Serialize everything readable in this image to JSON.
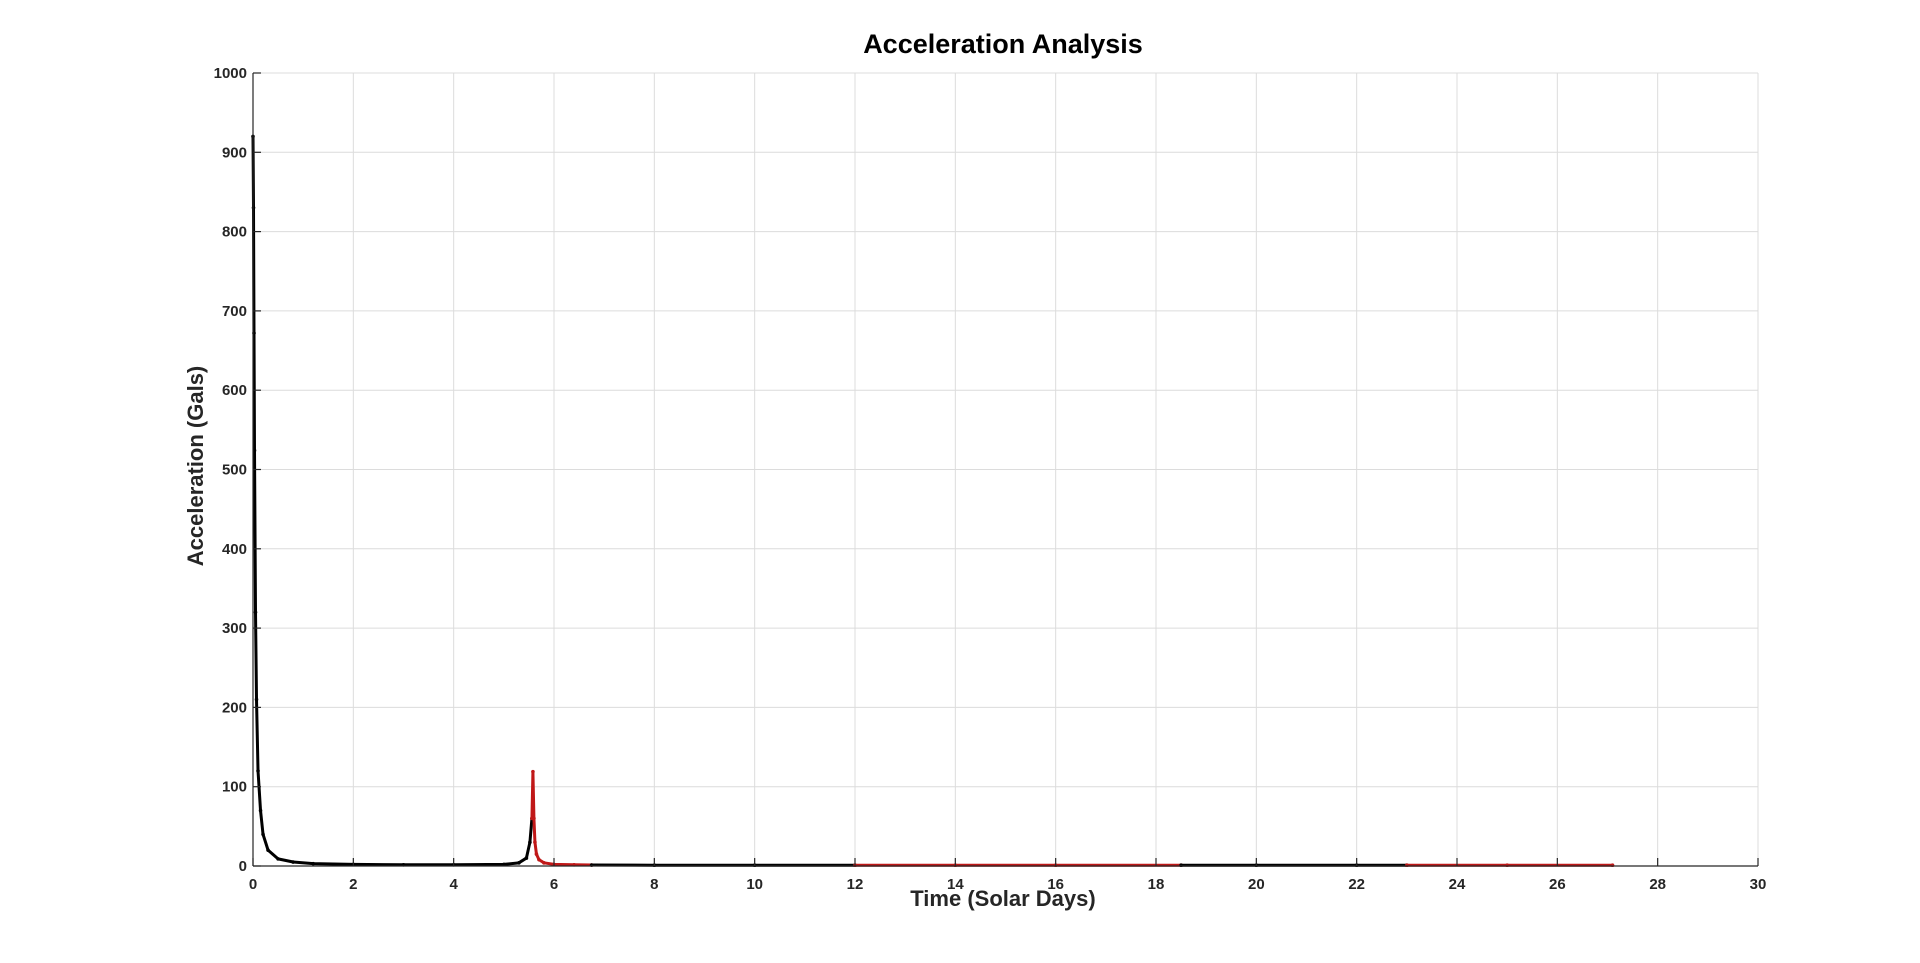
{
  "chart_data": {
    "type": "line",
    "title": "Acceleration Analysis",
    "xlabel": "Time (Solar Days)",
    "ylabel": "Acceleration (Gals)",
    "xlim": [
      0,
      30
    ],
    "ylim": [
      0,
      1000
    ],
    "xticks": [
      "0",
      "2",
      "4",
      "6",
      "8",
      "10",
      "12",
      "14",
      "16",
      "18",
      "20",
      "22",
      "24",
      "26",
      "28",
      "30"
    ],
    "yticks": [
      "0",
      "100",
      "200",
      "300",
      "400",
      "500",
      "600",
      "700",
      "800",
      "900",
      "1000"
    ],
    "grid": true,
    "legend": "none",
    "series": [
      {
        "color": "#000000",
        "x": [
          0.0,
          0.01,
          0.02,
          0.03,
          0.05,
          0.07,
          0.1,
          0.15,
          0.2,
          0.3,
          0.5,
          0.8,
          1.2,
          2.0,
          3.0,
          4.0,
          5.0,
          5.3,
          5.45,
          5.52,
          5.56
        ],
        "y": [
          920,
          830,
          672,
          524,
          320,
          210,
          120,
          70,
          40,
          20,
          9,
          5,
          3,
          2,
          1.5,
          1.5,
          2,
          4,
          10,
          30,
          60
        ]
      },
      {
        "color": "#c01818",
        "x": [
          5.56,
          5.58,
          5.6,
          5.62,
          5.65,
          5.7,
          5.8,
          6.0,
          6.4,
          6.75
        ],
        "y": [
          60,
          119,
          60,
          30,
          15,
          8,
          4,
          2,
          1.5,
          1.2
        ]
      },
      {
        "color": "#000000",
        "x": [
          6.75,
          8,
          10,
          12
        ],
        "y": [
          1.2,
          1,
          1,
          1
        ]
      },
      {
        "color": "#c01818",
        "x": [
          12,
          14,
          16,
          18.5
        ],
        "y": [
          1,
          1,
          1,
          1
        ]
      },
      {
        "color": "#000000",
        "x": [
          18.5,
          20,
          22,
          23
        ],
        "y": [
          1,
          1,
          1,
          1
        ]
      },
      {
        "color": "#c01818",
        "x": [
          23,
          25,
          27.1
        ],
        "y": [
          1,
          1,
          1
        ]
      }
    ]
  }
}
